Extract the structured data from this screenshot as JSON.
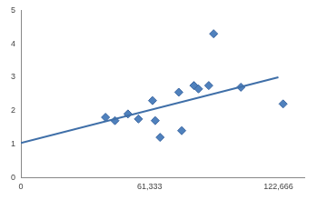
{
  "chart_data": {
    "type": "scatter",
    "x": [
      40300,
      44800,
      51000,
      56000,
      62700,
      64000,
      66300,
      75200,
      76600,
      82400,
      84600,
      89500,
      91800,
      104800,
      124900
    ],
    "values": [
      1.8,
      1.7,
      1.9,
      1.75,
      2.3,
      1.7,
      1.2,
      2.55,
      1.4,
      2.75,
      2.65,
      2.75,
      4.3,
      2.7,
      2.2
    ],
    "color": "#4f81bd",
    "marker": "diamond",
    "trendline": {
      "x": [
        0,
        122666
      ],
      "values": [
        1.03,
        3.0
      ],
      "color": "#3f6fa8",
      "line_style": "solid"
    },
    "xlim": [
      0,
      135000
    ],
    "xticks": [
      0,
      {
        "value": 61333,
        "label": "61,333"
      },
      {
        "value": 122666,
        "label": "122,666"
      }
    ],
    "ylim": [
      0,
      5
    ],
    "yticks": [
      0,
      1,
      2,
      3,
      4,
      5
    ],
    "grid": false
  }
}
